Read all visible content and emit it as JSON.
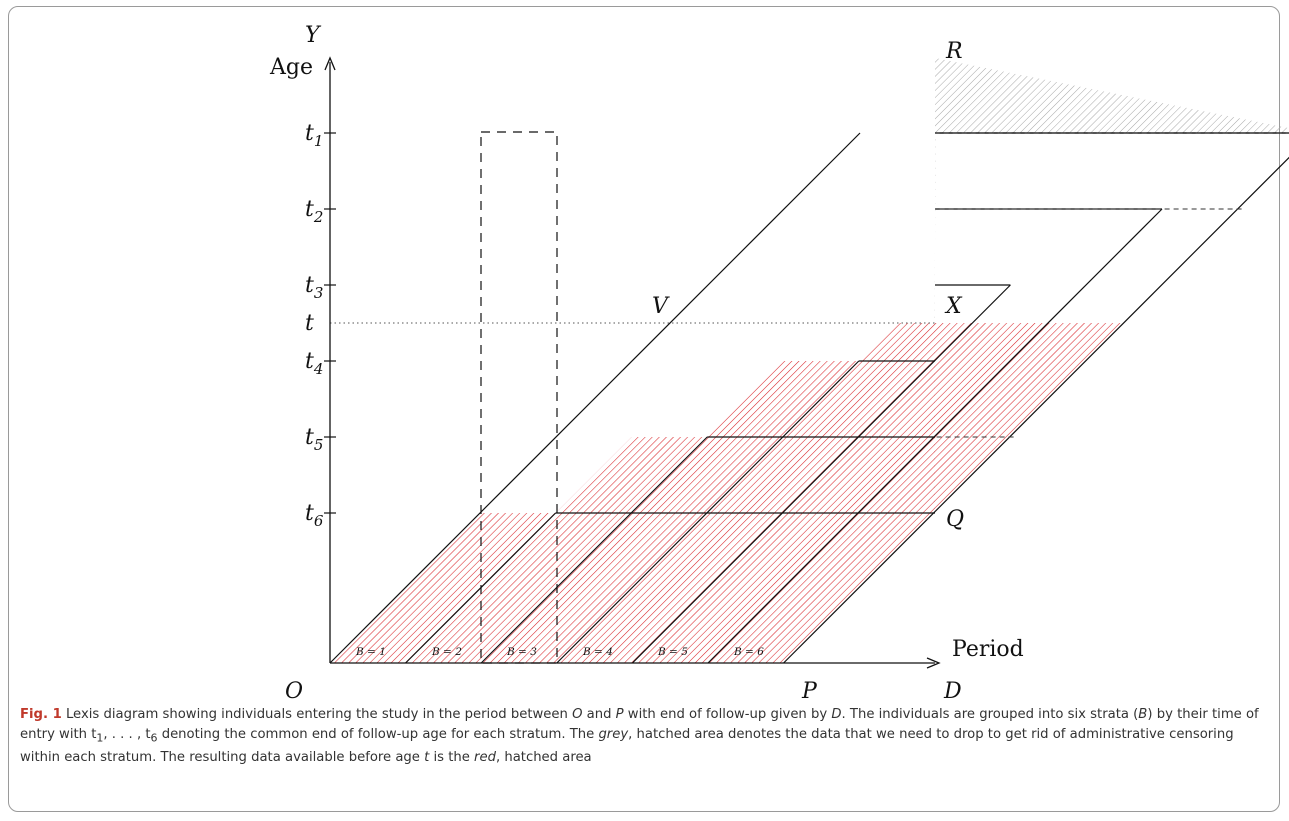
{
  "diagram": {
    "axes": {
      "y_symbol": "Y",
      "y_label": "Age",
      "x_label": "Period",
      "origin": "O"
    },
    "y_ticks": [
      {
        "base": "t",
        "sub": "1"
      },
      {
        "base": "t",
        "sub": "2"
      },
      {
        "base": "t",
        "sub": "3"
      },
      {
        "base": "t",
        "sub": ""
      },
      {
        "base": "t",
        "sub": "4"
      },
      {
        "base": "t",
        "sub": "5"
      },
      {
        "base": "t",
        "sub": "6"
      }
    ],
    "points": {
      "P": "P",
      "D": "D",
      "R": "R",
      "X": "X",
      "Q": "Q",
      "V": "V"
    },
    "strata_labels": [
      "B = 1",
      "B = 2",
      "B = 3",
      "B = 4",
      "B = 5",
      "B = 6"
    ],
    "colors": {
      "red_hatch": "#d9262b",
      "grey_hatch": "#a8a8a8",
      "line": "#111111"
    }
  },
  "caption": {
    "label": "Fig. 1",
    "part1": " Lexis diagram showing individuals entering the study in the period between ",
    "O": "O",
    "part2": " and ",
    "P": "P",
    "part3": " with end of follow-up given by ",
    "D": "D",
    "part4": ". The individuals are grouped into six strata (",
    "B": "B",
    "part5": ") by their time of entry with t",
    "sub1": "1",
    "part6": ", . . . , t",
    "sub6": "6",
    "part7": " denoting the common end of follow-up age for each stratum. The ",
    "grey": "grey",
    "part8": ", hatched area denotes the data that we need to drop to get rid of administrative censoring within each stratum. The resulting data available before age ",
    "t": "t",
    "part9": " is the ",
    "red": "red",
    "part10": ", hatched area"
  }
}
